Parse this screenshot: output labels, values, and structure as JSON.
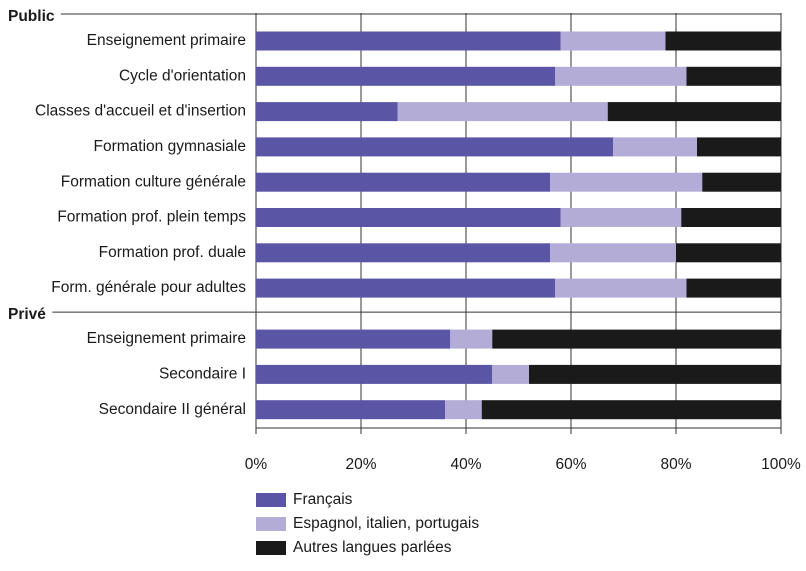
{
  "chart_data": {
    "type": "stacked-bar-horizontal",
    "groups": [
      {
        "name": "Public",
        "categories": [
          "Enseignement primaire",
          "Cycle d'orientation",
          "Classes d'accueil et d'insertion",
          "Formation gymnasiale",
          "Formation culture générale",
          "Formation prof. plein temps",
          "Formation prof. duale",
          "Form. générale pour adultes"
        ]
      },
      {
        "name": "Privé",
        "categories": [
          "Enseignement primaire",
          "Secondaire I",
          "Secondaire II général"
        ]
      }
    ],
    "series": [
      {
        "name": "Français",
        "color": "#5a55a5",
        "values": [
          58,
          57,
          27,
          68,
          56,
          58,
          56,
          57,
          37,
          45,
          36
        ]
      },
      {
        "name": "Espagnol, italien, portugais",
        "color": "#b2acd6",
        "values": [
          20,
          25,
          40,
          16,
          29,
          23,
          24,
          25,
          8,
          7,
          7
        ]
      },
      {
        "name": "Autres langues parlées",
        "color": "#1a1a1a",
        "values": [
          22,
          18,
          33,
          16,
          15,
          19,
          20,
          18,
          55,
          48,
          57
        ]
      }
    ],
    "xlim": [
      0,
      100
    ],
    "xticks": [
      {
        "value": 0,
        "label": "0%"
      },
      {
        "value": 20,
        "label": "20%"
      },
      {
        "value": 40,
        "label": "40%"
      },
      {
        "value": 60,
        "label": "60%"
      },
      {
        "value": 80,
        "label": "80%"
      },
      {
        "value": 100,
        "label": "100%"
      }
    ],
    "grid": true
  }
}
